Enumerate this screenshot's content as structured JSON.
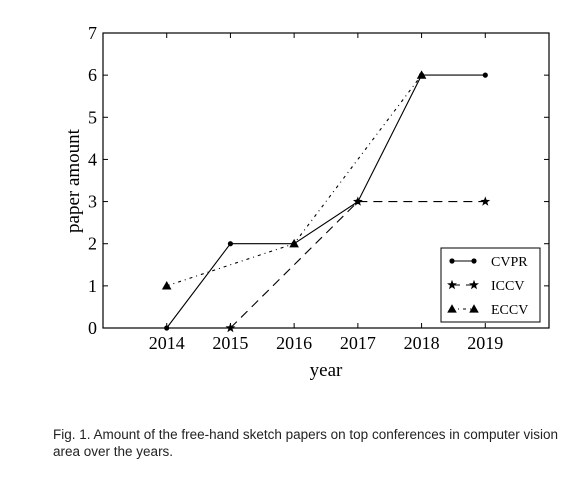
{
  "chart_data": {
    "type": "line",
    "title": "",
    "xlabel": "year",
    "ylabel": "paper amount",
    "x": [
      2014,
      2015,
      2016,
      2017,
      2018,
      2019
    ],
    "xlim": [
      2013,
      2020
    ],
    "ylim": [
      0,
      7
    ],
    "yticks": [
      0,
      1,
      2,
      3,
      4,
      5,
      6,
      7
    ],
    "grid": false,
    "legend_position": "bottom-right",
    "series": [
      {
        "name": "CVPR",
        "values": [
          0,
          2,
          2,
          3,
          6,
          6
        ],
        "linestyle": "solid",
        "marker": "dot"
      },
      {
        "name": "ICCV",
        "values": [
          null,
          0,
          null,
          3,
          null,
          3
        ],
        "linestyle": "dashed",
        "marker": "star"
      },
      {
        "name": "ECCV",
        "values": [
          1,
          null,
          2,
          null,
          6,
          null
        ],
        "linestyle": "dashdot",
        "marker": "triangle"
      }
    ],
    "colors": {
      "line": "#000000"
    }
  },
  "caption": "Fig. 1. Amount of the free-hand sketch papers on top conferences in computer vision area over the years."
}
